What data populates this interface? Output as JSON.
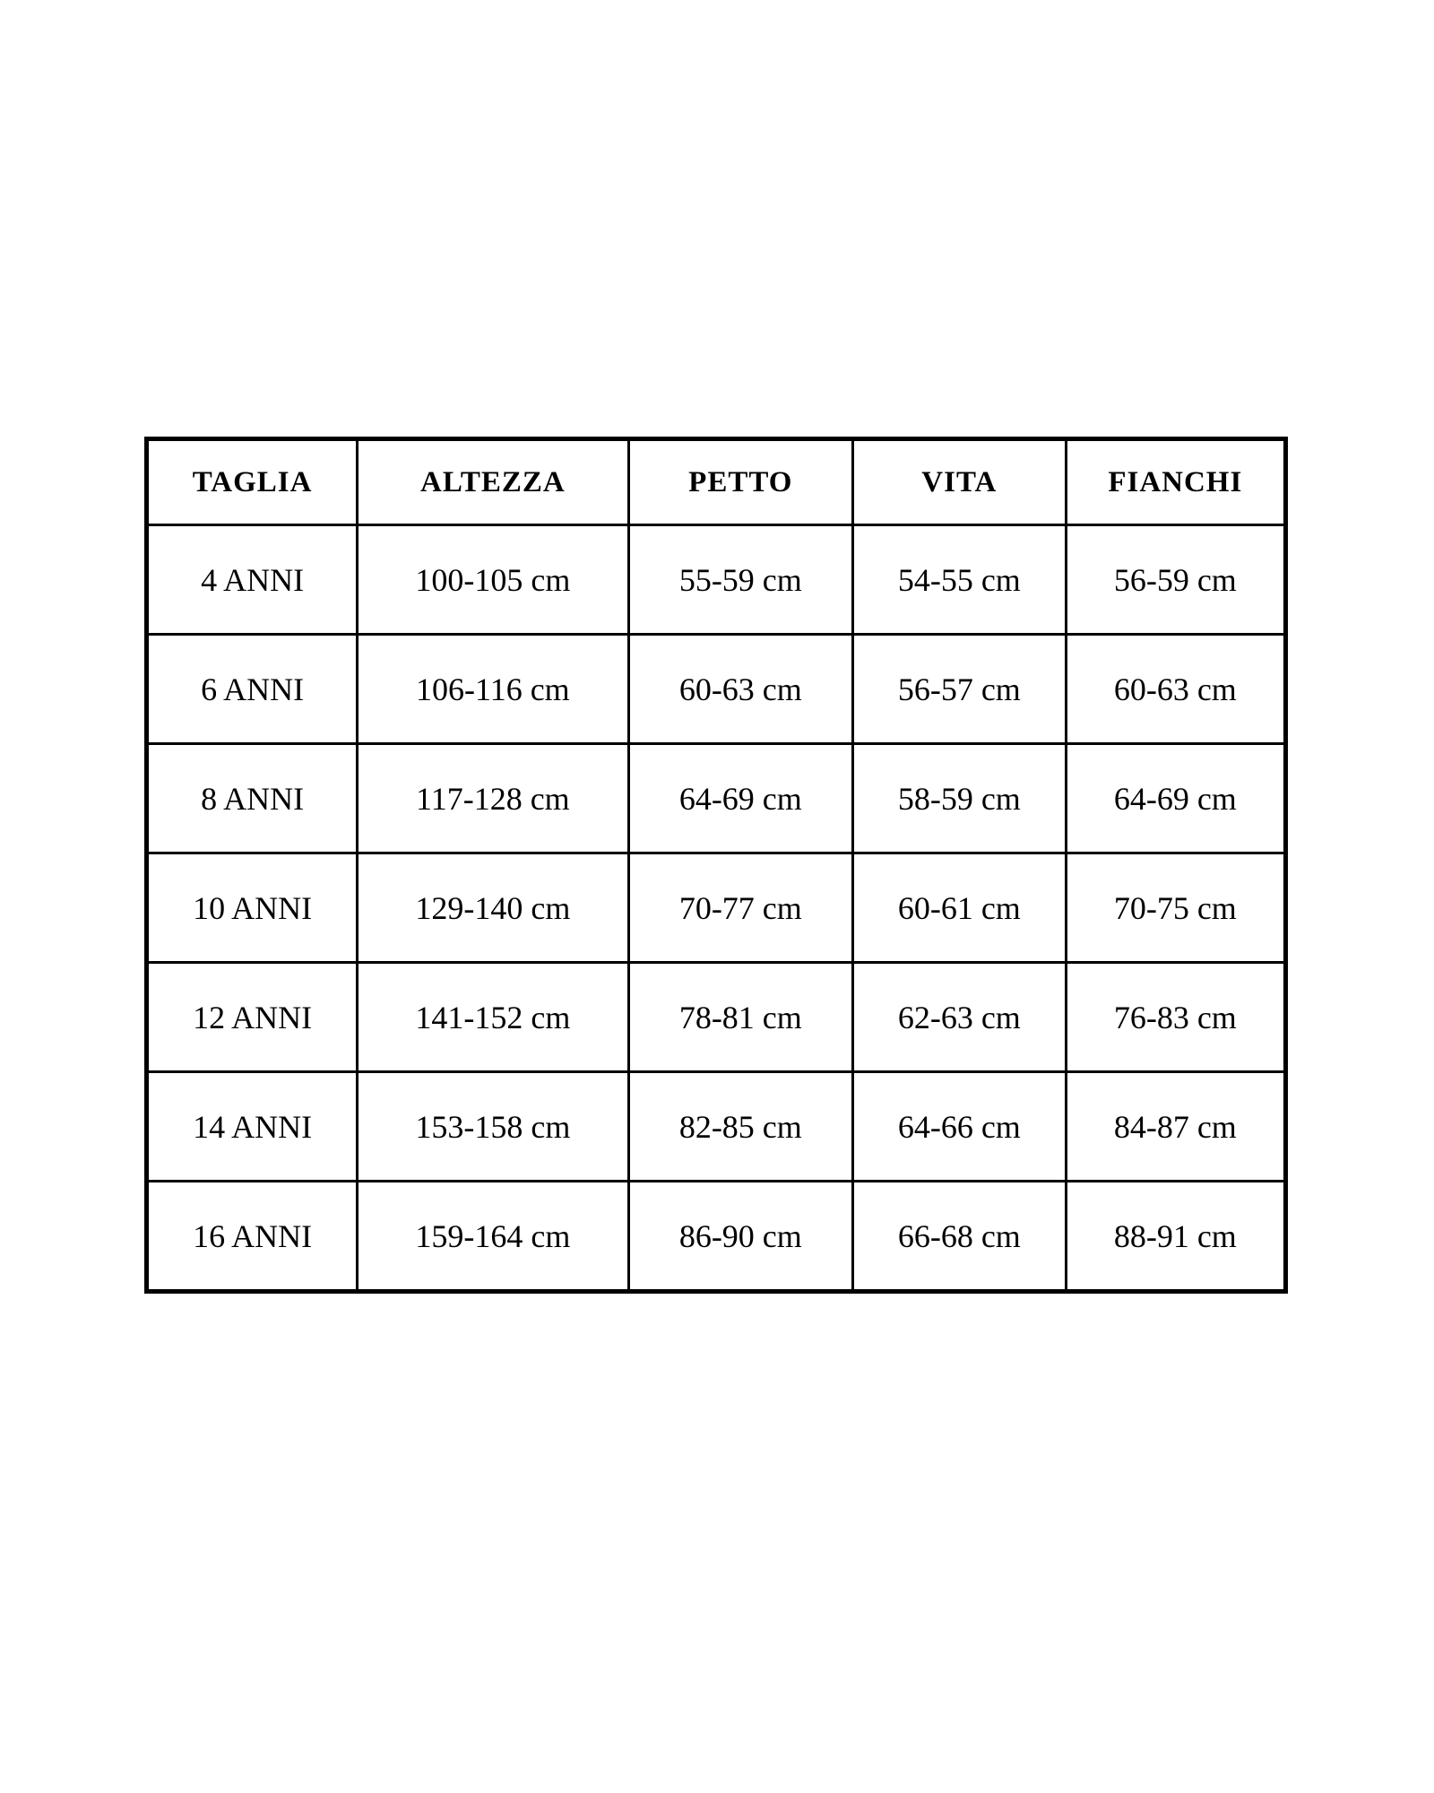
{
  "size_chart": {
    "headers": [
      "TAGLIA",
      "ALTEZZA",
      "PETTO",
      "VITA",
      "FIANCHI"
    ],
    "rows": [
      [
        "4 ANNI",
        "100-105 cm",
        "55-59 cm",
        "54-55 cm",
        "56-59 cm"
      ],
      [
        "6 ANNI",
        "106-116 cm",
        "60-63 cm",
        "56-57 cm",
        "60-63 cm"
      ],
      [
        "8 ANNI",
        "117-128 cm",
        "64-69 cm",
        "58-59 cm",
        "64-69 cm"
      ],
      [
        "10 ANNI",
        "129-140 cm",
        "70-77 cm",
        "60-61 cm",
        "70-75 cm"
      ],
      [
        "12 ANNI",
        "141-152 cm",
        "78-81 cm",
        "62-63 cm",
        "76-83 cm"
      ],
      [
        "14 ANNI",
        "153-158 cm",
        "82-85 cm",
        "64-66 cm",
        "84-87 cm"
      ],
      [
        "16 ANNI",
        "159-164 cm",
        "86-90 cm",
        "66-68 cm",
        "88-91 cm"
      ]
    ],
    "unit": "cm",
    "colors": {
      "border": "#000000",
      "text": "#000000",
      "background": "#ffffff"
    }
  }
}
